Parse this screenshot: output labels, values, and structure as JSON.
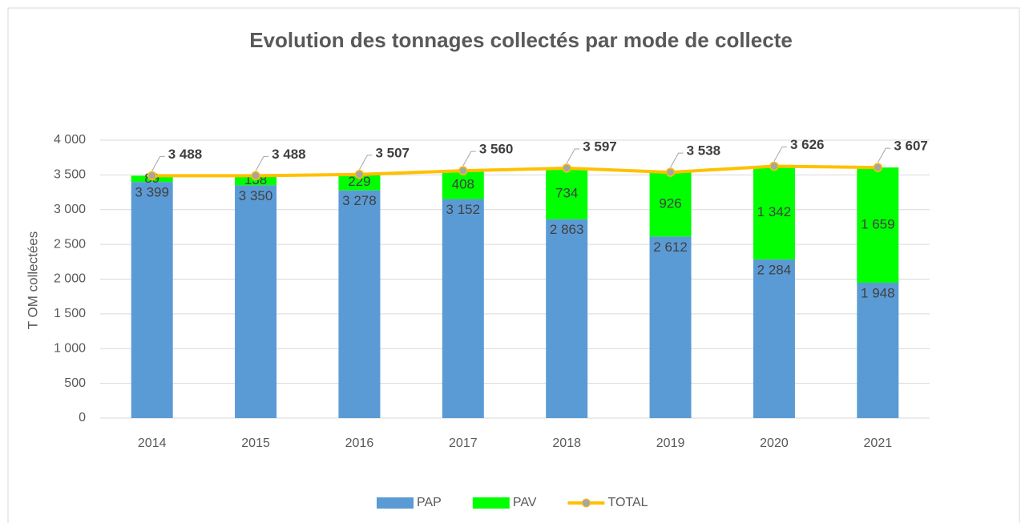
{
  "chart_data": {
    "type": "bar",
    "stacked": true,
    "title": "Evolution des tonnages collectés par mode de collecte",
    "y_label": "T OM collectées",
    "categories": [
      "2014",
      "2015",
      "2016",
      "2017",
      "2018",
      "2019",
      "2020",
      "2021"
    ],
    "series": [
      {
        "name": "PAP",
        "color": "#5b9bd5",
        "values": [
          3399,
          3350,
          3278,
          3152,
          2863,
          2612,
          2284,
          1948
        ],
        "value_labels": [
          "3 399",
          "3 350",
          "3 278",
          "3 152",
          "2 863",
          "2 612",
          "2 284",
          "1 948"
        ]
      },
      {
        "name": "PAV",
        "color": "#00ff00",
        "values": [
          89,
          138,
          229,
          408,
          734,
          926,
          1342,
          1659
        ],
        "value_labels": [
          "89",
          "138",
          "229",
          "408",
          "734",
          "926",
          "1 342",
          "1 659"
        ]
      },
      {
        "name": "TOTAL",
        "type": "line",
        "color": "#ffc000",
        "marker_color": "#a5a5a5",
        "values": [
          3488,
          3488,
          3507,
          3560,
          3597,
          3538,
          3626,
          3607
        ],
        "value_labels": [
          "3 488",
          "3 488",
          "3 507",
          "3 560",
          "3 597",
          "3 538",
          "3 626",
          "3 607"
        ]
      }
    ],
    "ylim": [
      0,
      4000
    ],
    "yticks": [
      0,
      500,
      {
        "value": 1000,
        "label": "1 000"
      },
      {
        "value": 1500,
        "label": "1 500"
      },
      {
        "value": 2000,
        "label": "2 000"
      },
      {
        "value": 2500,
        "label": "2 500"
      },
      {
        "value": 3000,
        "label": "3 000"
      },
      {
        "value": 3500,
        "label": "3 500"
      },
      {
        "value": 4000,
        "label": "4 000"
      }
    ],
    "grid": true,
    "legend": "bottom"
  }
}
